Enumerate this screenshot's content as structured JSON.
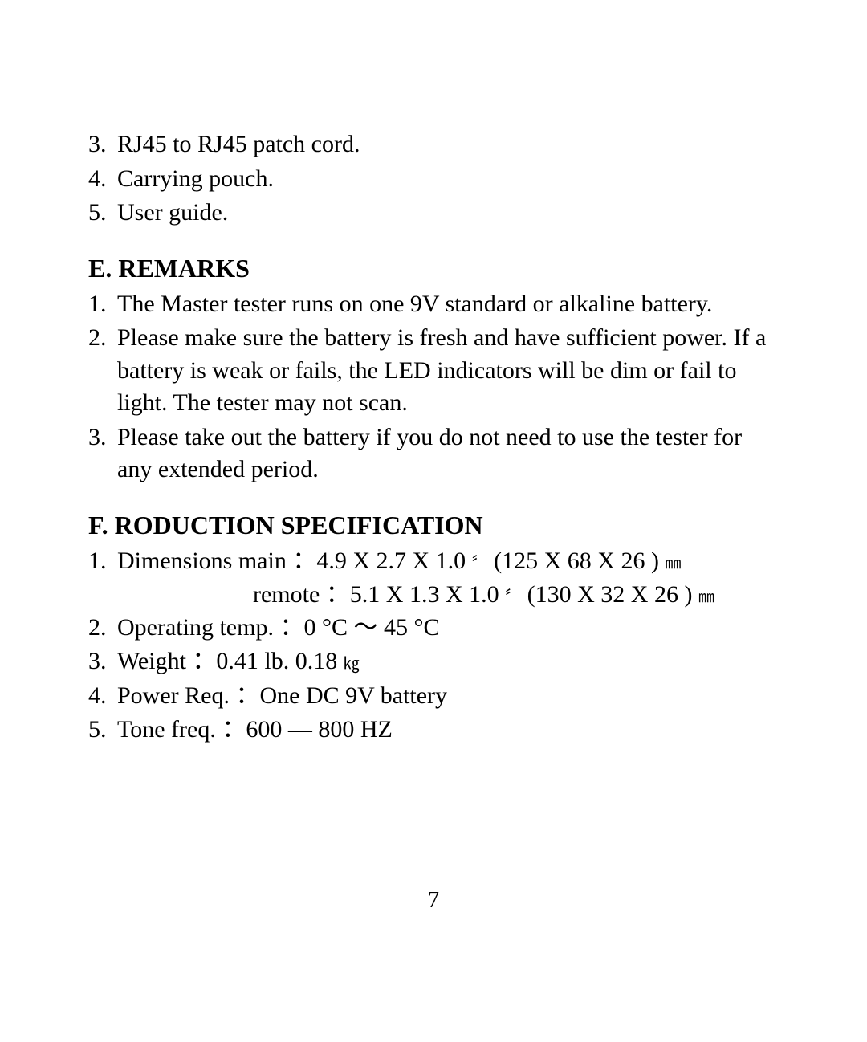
{
  "page_number": "7",
  "top_list": {
    "items": [
      {
        "num": "3.",
        "text": "RJ45 to RJ45 patch cord."
      },
      {
        "num": "4.",
        "text": "Carrying pouch."
      },
      {
        "num": "5.",
        "text": "User guide."
      }
    ]
  },
  "section_e": {
    "heading": "E. REMARKS",
    "items": [
      {
        "num": "1.",
        "text": "The Master tester runs on one 9V standard or alkaline battery."
      },
      {
        "num": "2.",
        "text": "Please make sure the battery is fresh and have sufficient power.  If a battery is weak or fails, the LED indicators will be dim or fail to light.  The tester may not scan."
      },
      {
        "num": "3.",
        "text": "Please take out the battery if you do not need to use the tester for any extended period."
      }
    ]
  },
  "section_f": {
    "heading": "F. RODUCTION SPECIFICATION",
    "item1_num": "1.",
    "item1_text_a": "Dimensions main ：4.9 X 2.7 X 1.0 ",
    "item1_quote": "〞",
    "item1_text_b": " (125 X 68 X 26 ) ",
    "item1_unit": "㎜",
    "item1_remote_a": "remote ：5.1 X 1.3 X 1.0 ",
    "item1_remote_b": " (130 X 32 X 26 ) ",
    "item2_num": "2.",
    "item2_text": "Operating temp. ：0 °C ～ 45 °C",
    "item3_num": "3.",
    "item3_text_a": "Weight ：0.41 lb.  0.18 ",
    "item3_unit": "㎏",
    "item4_num": "4.",
    "item4_text": "Power Req. ：One DC 9V battery",
    "item5_num": "5.",
    "item5_text": "Tone freq. ：600 — 800 HZ"
  },
  "colors": {
    "background": "#ffffff",
    "text": "#000000"
  },
  "typography": {
    "body_fontsize": 30,
    "heading_fontsize": 32,
    "pagenum_fontsize": 28,
    "font_family": "Times New Roman"
  }
}
